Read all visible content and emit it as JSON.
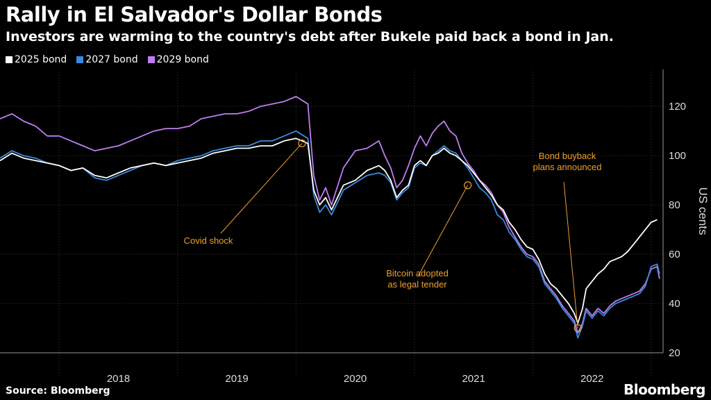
{
  "header": {
    "title": "Rally in El Salvador's Dollar Bonds",
    "subtitle": "Investors are warming to the country's debt after Bukele paid back a bond in Jan."
  },
  "footer": {
    "source": "Source: Bloomberg",
    "brand": "Bloomberg"
  },
  "chart_data": {
    "type": "line",
    "title": "Rally in El Salvador's Dollar Bonds",
    "subtitle": "Investors are warming to the country's debt after Bukele paid back a bond in Jan.",
    "ylabel": "US cents",
    "ylim": [
      20,
      135
    ],
    "yticks": [
      20,
      40,
      60,
      80,
      100,
      120
    ],
    "xlim": [
      2017.5,
      2023.1
    ],
    "xticks": [
      "2018",
      "2019",
      "2020",
      "2021",
      "2022"
    ],
    "grid": true,
    "legend_position": "top-left",
    "series": [
      {
        "name": "2025 bond",
        "color": "#ffffff",
        "points": [
          [
            2017.5,
            98
          ],
          [
            2017.6,
            101
          ],
          [
            2017.7,
            99
          ],
          [
            2017.8,
            98
          ],
          [
            2017.9,
            97
          ],
          [
            2018.0,
            96
          ],
          [
            2018.1,
            94
          ],
          [
            2018.2,
            95
          ],
          [
            2018.3,
            92
          ],
          [
            2018.4,
            91
          ],
          [
            2018.5,
            93
          ],
          [
            2018.6,
            95
          ],
          [
            2018.7,
            96
          ],
          [
            2018.8,
            97
          ],
          [
            2018.9,
            96
          ],
          [
            2019.0,
            97
          ],
          [
            2019.1,
            98
          ],
          [
            2019.2,
            99
          ],
          [
            2019.3,
            101
          ],
          [
            2019.4,
            102
          ],
          [
            2019.5,
            103
          ],
          [
            2019.6,
            103
          ],
          [
            2019.7,
            104
          ],
          [
            2019.8,
            104
          ],
          [
            2019.9,
            106
          ],
          [
            2020.0,
            107
          ],
          [
            2020.1,
            105
          ],
          [
            2020.15,
            86
          ],
          [
            2020.2,
            80
          ],
          [
            2020.25,
            83
          ],
          [
            2020.3,
            78
          ],
          [
            2020.4,
            88
          ],
          [
            2020.5,
            90
          ],
          [
            2020.6,
            94
          ],
          [
            2020.7,
            96
          ],
          [
            2020.75,
            94
          ],
          [
            2020.8,
            90
          ],
          [
            2020.85,
            83
          ],
          [
            2020.9,
            86
          ],
          [
            2020.95,
            88
          ],
          [
            2021.0,
            96
          ],
          [
            2021.05,
            98
          ],
          [
            2021.1,
            96
          ],
          [
            2021.15,
            100
          ],
          [
            2021.2,
            101
          ],
          [
            2021.25,
            103
          ],
          [
            2021.3,
            101
          ],
          [
            2021.35,
            100
          ],
          [
            2021.4,
            98
          ],
          [
            2021.45,
            96
          ],
          [
            2021.5,
            93
          ],
          [
            2021.55,
            90
          ],
          [
            2021.6,
            87
          ],
          [
            2021.65,
            84
          ],
          [
            2021.7,
            80
          ],
          [
            2021.75,
            78
          ],
          [
            2021.8,
            73
          ],
          [
            2021.85,
            70
          ],
          [
            2021.9,
            66
          ],
          [
            2021.95,
            63
          ],
          [
            2022.0,
            62
          ],
          [
            2022.05,
            58
          ],
          [
            2022.1,
            52
          ],
          [
            2022.15,
            48
          ],
          [
            2022.2,
            46
          ],
          [
            2022.25,
            43
          ],
          [
            2022.3,
            40
          ],
          [
            2022.35,
            36
          ],
          [
            2022.38,
            32
          ],
          [
            2022.42,
            38
          ],
          [
            2022.45,
            46
          ],
          [
            2022.5,
            49
          ],
          [
            2022.55,
            52
          ],
          [
            2022.6,
            54
          ],
          [
            2022.65,
            57
          ],
          [
            2022.7,
            58
          ],
          [
            2022.75,
            59
          ],
          [
            2022.8,
            61
          ],
          [
            2022.85,
            64
          ],
          [
            2022.9,
            67
          ],
          [
            2022.95,
            70
          ],
          [
            2023.0,
            73
          ],
          [
            2023.05,
            74
          ]
        ]
      },
      {
        "name": "2027 bond",
        "color": "#3a8be0",
        "points": [
          [
            2017.5,
            99
          ],
          [
            2017.6,
            102
          ],
          [
            2017.7,
            100
          ],
          [
            2017.8,
            99
          ],
          [
            2017.9,
            97
          ],
          [
            2018.0,
            96
          ],
          [
            2018.1,
            94
          ],
          [
            2018.2,
            95
          ],
          [
            2018.3,
            91
          ],
          [
            2018.4,
            90
          ],
          [
            2018.5,
            92
          ],
          [
            2018.6,
            94
          ],
          [
            2018.7,
            96
          ],
          [
            2018.8,
            97
          ],
          [
            2018.9,
            96
          ],
          [
            2019.0,
            98
          ],
          [
            2019.1,
            99
          ],
          [
            2019.2,
            100
          ],
          [
            2019.3,
            102
          ],
          [
            2019.4,
            103
          ],
          [
            2019.5,
            104
          ],
          [
            2019.6,
            104
          ],
          [
            2019.7,
            106
          ],
          [
            2019.8,
            106
          ],
          [
            2019.9,
            108
          ],
          [
            2020.0,
            110
          ],
          [
            2020.1,
            107
          ],
          [
            2020.15,
            84
          ],
          [
            2020.2,
            77
          ],
          [
            2020.25,
            80
          ],
          [
            2020.3,
            76
          ],
          [
            2020.4,
            86
          ],
          [
            2020.5,
            89
          ],
          [
            2020.6,
            92
          ],
          [
            2020.7,
            93
          ],
          [
            2020.75,
            92
          ],
          [
            2020.8,
            89
          ],
          [
            2020.85,
            82
          ],
          [
            2020.9,
            85
          ],
          [
            2020.95,
            87
          ],
          [
            2021.0,
            95
          ],
          [
            2021.05,
            97
          ],
          [
            2021.1,
            96
          ],
          [
            2021.15,
            100
          ],
          [
            2021.2,
            102
          ],
          [
            2021.25,
            104
          ],
          [
            2021.3,
            102
          ],
          [
            2021.35,
            101
          ],
          [
            2021.4,
            98
          ],
          [
            2021.45,
            95
          ],
          [
            2021.5,
            91
          ],
          [
            2021.55,
            87
          ],
          [
            2021.6,
            85
          ],
          [
            2021.65,
            82
          ],
          [
            2021.7,
            76
          ],
          [
            2021.75,
            74
          ],
          [
            2021.8,
            69
          ],
          [
            2021.85,
            66
          ],
          [
            2021.9,
            62
          ],
          [
            2021.95,
            59
          ],
          [
            2022.0,
            58
          ],
          [
            2022.05,
            55
          ],
          [
            2022.1,
            48
          ],
          [
            2022.15,
            45
          ],
          [
            2022.2,
            42
          ],
          [
            2022.25,
            38
          ],
          [
            2022.3,
            35
          ],
          [
            2022.35,
            32
          ],
          [
            2022.38,
            26
          ],
          [
            2022.42,
            31
          ],
          [
            2022.45,
            37
          ],
          [
            2022.5,
            34
          ],
          [
            2022.55,
            37
          ],
          [
            2022.6,
            35
          ],
          [
            2022.65,
            38
          ],
          [
            2022.7,
            40
          ],
          [
            2022.75,
            41
          ],
          [
            2022.8,
            42
          ],
          [
            2022.85,
            43
          ],
          [
            2022.9,
            44
          ],
          [
            2022.95,
            47
          ],
          [
            2023.0,
            55
          ],
          [
            2023.05,
            56
          ],
          [
            2023.07,
            52
          ]
        ]
      },
      {
        "name": "2029 bond",
        "color": "#c07ef0",
        "points": [
          [
            2017.5,
            115
          ],
          [
            2017.6,
            117
          ],
          [
            2017.7,
            114
          ],
          [
            2017.8,
            112
          ],
          [
            2017.9,
            108
          ],
          [
            2018.0,
            108
          ],
          [
            2018.1,
            106
          ],
          [
            2018.2,
            104
          ],
          [
            2018.3,
            102
          ],
          [
            2018.4,
            103
          ],
          [
            2018.5,
            104
          ],
          [
            2018.6,
            106
          ],
          [
            2018.7,
            108
          ],
          [
            2018.8,
            110
          ],
          [
            2018.9,
            111
          ],
          [
            2019.0,
            111
          ],
          [
            2019.1,
            112
          ],
          [
            2019.2,
            115
          ],
          [
            2019.3,
            116
          ],
          [
            2019.4,
            117
          ],
          [
            2019.5,
            117
          ],
          [
            2019.6,
            118
          ],
          [
            2019.7,
            120
          ],
          [
            2019.8,
            121
          ],
          [
            2019.9,
            122
          ],
          [
            2020.0,
            124
          ],
          [
            2020.1,
            121
          ],
          [
            2020.15,
            92
          ],
          [
            2020.2,
            82
          ],
          [
            2020.25,
            87
          ],
          [
            2020.3,
            80
          ],
          [
            2020.4,
            95
          ],
          [
            2020.5,
            102
          ],
          [
            2020.6,
            103
          ],
          [
            2020.7,
            106
          ],
          [
            2020.75,
            100
          ],
          [
            2020.8,
            95
          ],
          [
            2020.85,
            87
          ],
          [
            2020.9,
            90
          ],
          [
            2020.95,
            96
          ],
          [
            2021.0,
            103
          ],
          [
            2021.05,
            108
          ],
          [
            2021.1,
            104
          ],
          [
            2021.15,
            109
          ],
          [
            2021.2,
            112
          ],
          [
            2021.25,
            114
          ],
          [
            2021.3,
            110
          ],
          [
            2021.35,
            108
          ],
          [
            2021.4,
            101
          ],
          [
            2021.45,
            97
          ],
          [
            2021.5,
            94
          ],
          [
            2021.55,
            90
          ],
          [
            2021.6,
            88
          ],
          [
            2021.65,
            85
          ],
          [
            2021.7,
            80
          ],
          [
            2021.75,
            77
          ],
          [
            2021.8,
            71
          ],
          [
            2021.85,
            67
          ],
          [
            2021.9,
            63
          ],
          [
            2021.95,
            60
          ],
          [
            2022.0,
            59
          ],
          [
            2022.05,
            56
          ],
          [
            2022.1,
            49
          ],
          [
            2022.15,
            46
          ],
          [
            2022.2,
            43
          ],
          [
            2022.25,
            39
          ],
          [
            2022.3,
            36
          ],
          [
            2022.35,
            33
          ],
          [
            2022.38,
            28
          ],
          [
            2022.42,
            32
          ],
          [
            2022.45,
            38
          ],
          [
            2022.5,
            35
          ],
          [
            2022.55,
            38
          ],
          [
            2022.6,
            36
          ],
          [
            2022.65,
            39
          ],
          [
            2022.7,
            41
          ],
          [
            2022.75,
            42
          ],
          [
            2022.8,
            43
          ],
          [
            2022.85,
            44
          ],
          [
            2022.9,
            45
          ],
          [
            2022.95,
            48
          ],
          [
            2023.0,
            54
          ],
          [
            2023.05,
            55
          ],
          [
            2023.07,
            50
          ]
        ]
      }
    ],
    "annotations": [
      {
        "label": "Covid shock",
        "x": 2020.05,
        "y": 105
      },
      {
        "label": "Bitcoin adopted\nas legal tender",
        "x": 2021.45,
        "y": 88
      },
      {
        "label": "Bond buyback\nplans announced",
        "x": 2022.38,
        "y": 30
      }
    ],
    "annotation_color": "#f0a030"
  }
}
